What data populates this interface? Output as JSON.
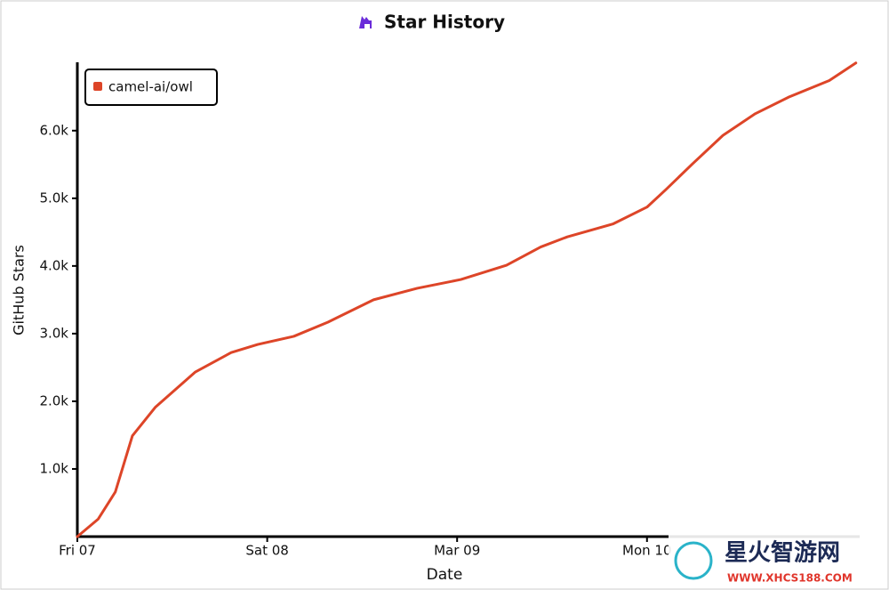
{
  "chart_data": {
    "type": "line",
    "title": "Star History",
    "x_label": "Date",
    "y_label": "GitHub Stars",
    "x": [
      0,
      0.11,
      0.2,
      0.29,
      0.41,
      0.62,
      0.81,
      0.95,
      1.14,
      1.32,
      1.56,
      1.79,
      2.02,
      2.26,
      2.44,
      2.58,
      2.82,
      3.0,
      3.1,
      3.24,
      3.4,
      3.57,
      3.75,
      3.96,
      4.1
    ],
    "series": [
      {
        "name": "camel-ai/owl",
        "color": "#dd4528",
        "values": [
          0,
          260,
          660,
          1490,
          1910,
          2430,
          2720,
          2840,
          2960,
          3170,
          3500,
          3670,
          3800,
          4010,
          4280,
          4430,
          4620,
          4870,
          5130,
          5510,
          5930,
          6250,
          6500,
          6740,
          7000
        ]
      }
    ],
    "xlim": [
      0,
      4.12
    ],
    "xticks": [
      {
        "value": 0,
        "label": "Fri 07"
      },
      {
        "value": 1,
        "label": "Sat 08"
      },
      {
        "value": 2,
        "label": "Mar 09"
      },
      {
        "value": 3,
        "label": "Mon 10"
      }
    ],
    "ylim": [
      0,
      7010
    ],
    "yticks": [
      {
        "value": 1000,
        "label": "1.0k"
      },
      {
        "value": 2000,
        "label": "2.0k"
      },
      {
        "value": 3000,
        "label": "3.0k"
      },
      {
        "value": 4000,
        "label": "4.0k"
      },
      {
        "value": 5000,
        "label": "5.0k"
      },
      {
        "value": 6000,
        "label": "6.0k"
      }
    ],
    "legend": "top-left",
    "watermark": {
      "name": "星火智游网",
      "url": "WWW.XHCS188.COM"
    }
  }
}
